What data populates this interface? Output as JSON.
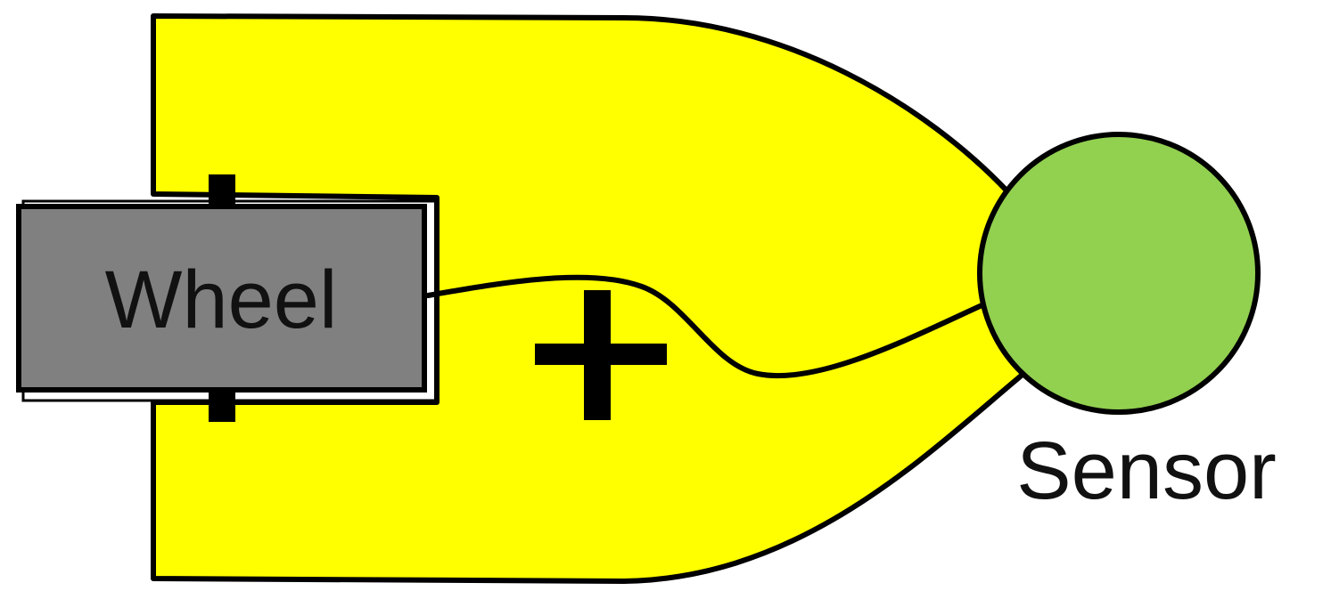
{
  "diagram": {
    "wheel_label": "Wheel",
    "sensor_label": "Sensor",
    "connection_sign": "+",
    "colors": {
      "body_fill": "#ffff00",
      "wheel_fill": "#808080",
      "sensor_fill": "#92d050",
      "outline": "#000000"
    }
  }
}
